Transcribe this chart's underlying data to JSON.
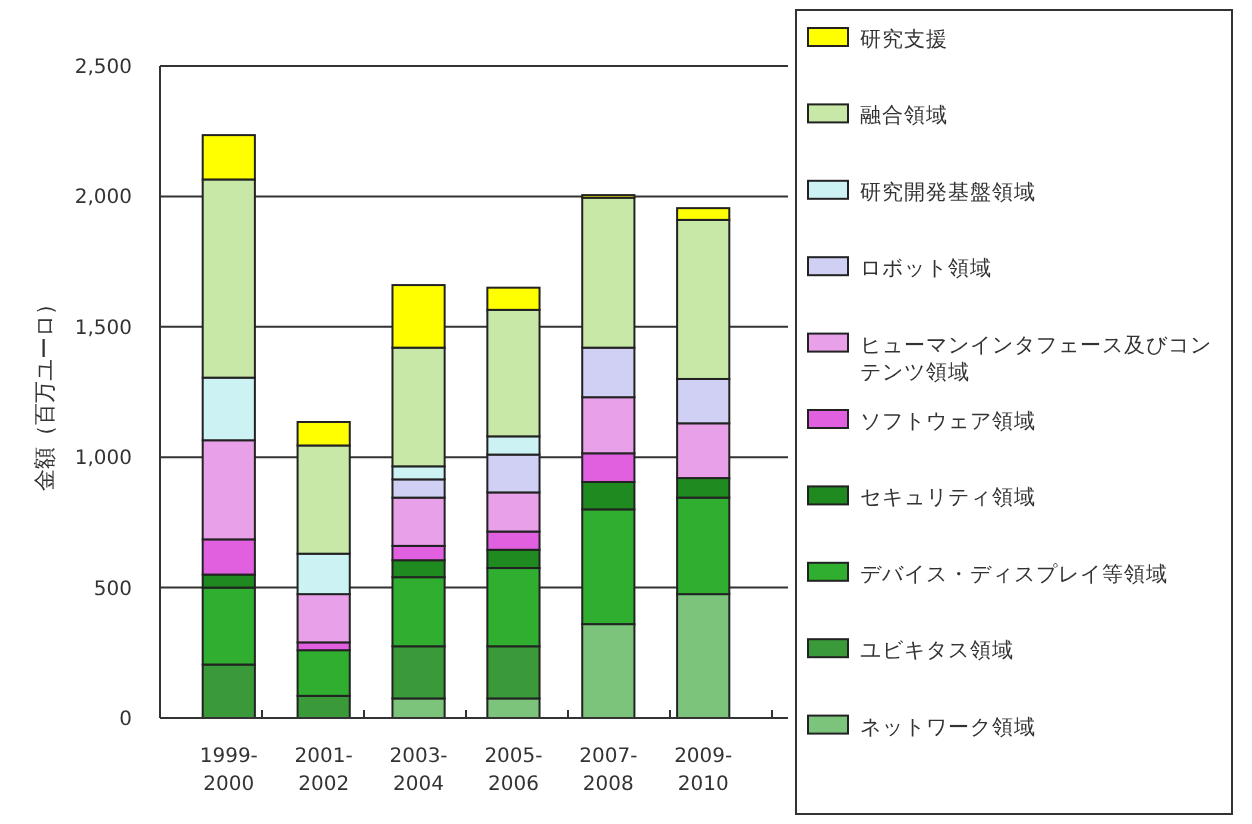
{
  "chart_data": {
    "type": "bar",
    "stacked": true,
    "ylabel": "金額（百万ユーロ）",
    "categories": [
      "1999-2000",
      "2001-2002",
      "2003-2004",
      "2005-2006",
      "2007-2008",
      "2009-2010"
    ],
    "series": [
      {
        "name": "ネットワーク領域",
        "color": "#7cc47c",
        "values": [
          0,
          0,
          75,
          75,
          360,
          475
        ]
      },
      {
        "name": "ユビキタス領域",
        "color": "#3a9a3a",
        "values": [
          205,
          85,
          200,
          200,
          null,
          0
        ]
      },
      {
        "name": "デバイス・ディスプレイ等領域",
        "color": "#2fae2f",
        "values": [
          295,
          175,
          265,
          300,
          440,
          370
        ]
      },
      {
        "name": "セキュリティ領域",
        "color": "#1f8a1f",
        "values": [
          50,
          0,
          65,
          70,
          105,
          75
        ]
      },
      {
        "name": "ソフトウェア領域",
        "color": "#e060e0",
        "values": [
          135,
          30,
          55,
          70,
          110,
          0
        ]
      },
      {
        "name": "ヒューマンインタフェース及びコンテンツ領域",
        "color": "#e8a0e8",
        "values": [
          380,
          185,
          185,
          150,
          215,
          210
        ]
      },
      {
        "name": "ロボット領域",
        "color": "#d0d0f4",
        "values": [
          0,
          0,
          70,
          145,
          190,
          170
        ]
      },
      {
        "name": "研究開発基盤領域",
        "color": "#ccf2f4",
        "values": [
          240,
          155,
          50,
          70,
          0,
          0
        ]
      },
      {
        "name": "融合領域",
        "color": "#c8e8a8",
        "values": [
          760,
          415,
          455,
          485,
          575,
          610
        ]
      },
      {
        "name": "研究支援",
        "color": "#ffff00",
        "values": [
          170,
          90,
          240,
          85,
          10,
          45
        ]
      }
    ],
    "ylim": [
      0,
      2500
    ],
    "yticks": [
      {
        "value": 0,
        "label": "0"
      },
      {
        "value": 500,
        "label": "500"
      },
      {
        "value": 1000,
        "label": "1,000"
      },
      {
        "value": 1500,
        "label": "1,500"
      },
      {
        "value": 2000,
        "label": "2,000"
      },
      {
        "value": 2500,
        "label": "2,500"
      }
    ],
    "grid": "y",
    "legend": "right"
  }
}
